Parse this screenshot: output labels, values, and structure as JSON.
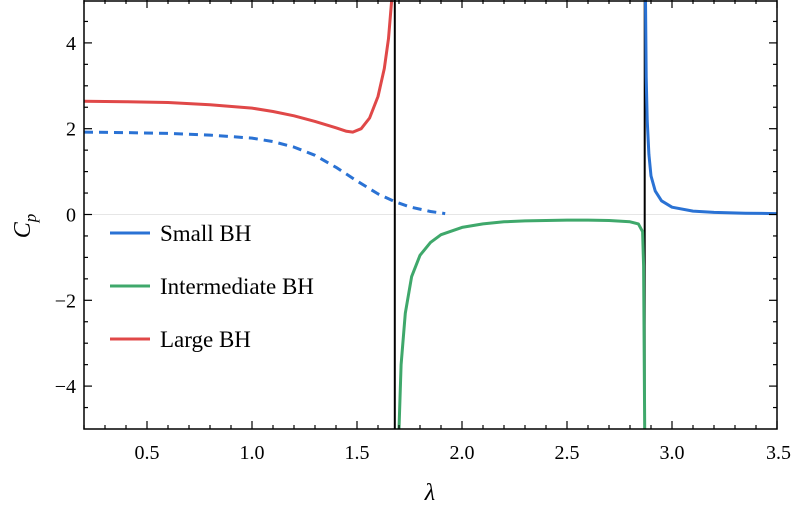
{
  "chart_data": {
    "type": "line",
    "xlabel": "λ",
    "ylabel": "C",
    "ylabel_sub": "p",
    "xlim": [
      0.2,
      3.5
    ],
    "ylim": [
      -5,
      5
    ],
    "x_ticks": [
      0.5,
      1.0,
      1.5,
      2.0,
      2.5,
      3.0,
      3.5
    ],
    "x_tick_labels": [
      "0.5",
      "1.0",
      "1.5",
      "2.0",
      "2.5",
      "3.0",
      "3.5"
    ],
    "y_ticks": [
      -4,
      -2,
      0,
      2,
      4
    ],
    "y_tick_labels": [
      "−4",
      "−2",
      "0",
      "2",
      "4"
    ],
    "grid": false,
    "legend_position": "left",
    "vertical_lines": [
      1.68,
      2.87
    ],
    "zero_line": 0,
    "series": [
      {
        "name": "Small BH",
        "color": "#2a72d4",
        "style": "solid",
        "points": [
          [
            2.874,
            5.0
          ],
          [
            2.877,
            3.2
          ],
          [
            2.882,
            2.2
          ],
          [
            2.89,
            1.4
          ],
          [
            2.9,
            0.9
          ],
          [
            2.92,
            0.55
          ],
          [
            2.95,
            0.32
          ],
          [
            3.0,
            0.17
          ],
          [
            3.1,
            0.08
          ],
          [
            3.2,
            0.05
          ],
          [
            3.35,
            0.03
          ],
          [
            3.5,
            0.02
          ]
        ]
      },
      {
        "name": "Small BH (dashed branch)",
        "legend": false,
        "color": "#2a72d4",
        "style": "dashed",
        "points": [
          [
            0.2,
            1.92
          ],
          [
            0.4,
            1.91
          ],
          [
            0.6,
            1.89
          ],
          [
            0.8,
            1.85
          ],
          [
            1.0,
            1.78
          ],
          [
            1.1,
            1.7
          ],
          [
            1.2,
            1.57
          ],
          [
            1.3,
            1.38
          ],
          [
            1.4,
            1.1
          ],
          [
            1.5,
            0.78
          ],
          [
            1.6,
            0.48
          ],
          [
            1.68,
            0.3
          ],
          [
            1.75,
            0.18
          ],
          [
            1.85,
            0.07
          ],
          [
            1.92,
            0.02
          ]
        ]
      },
      {
        "name": "Intermediate BH",
        "color": "#3fa86b",
        "style": "solid",
        "points": [
          [
            1.7,
            -5.0
          ],
          [
            1.71,
            -3.5
          ],
          [
            1.73,
            -2.3
          ],
          [
            1.76,
            -1.45
          ],
          [
            1.8,
            -0.95
          ],
          [
            1.85,
            -0.65
          ],
          [
            1.9,
            -0.47
          ],
          [
            2.0,
            -0.3
          ],
          [
            2.1,
            -0.22
          ],
          [
            2.2,
            -0.17
          ],
          [
            2.3,
            -0.15
          ],
          [
            2.4,
            -0.14
          ],
          [
            2.5,
            -0.13
          ],
          [
            2.6,
            -0.13
          ],
          [
            2.7,
            -0.14
          ],
          [
            2.8,
            -0.17
          ],
          [
            2.84,
            -0.22
          ],
          [
            2.86,
            -0.4
          ],
          [
            2.865,
            -1.2
          ],
          [
            2.87,
            -5.0
          ]
        ]
      },
      {
        "name": "Large BH",
        "color": "#e04848",
        "style": "solid",
        "points": [
          [
            0.2,
            2.64
          ],
          [
            0.4,
            2.63
          ],
          [
            0.6,
            2.61
          ],
          [
            0.8,
            2.56
          ],
          [
            1.0,
            2.48
          ],
          [
            1.1,
            2.4
          ],
          [
            1.2,
            2.3
          ],
          [
            1.3,
            2.17
          ],
          [
            1.4,
            2.02
          ],
          [
            1.45,
            1.94
          ],
          [
            1.48,
            1.92
          ],
          [
            1.52,
            2.0
          ],
          [
            1.56,
            2.25
          ],
          [
            1.6,
            2.75
          ],
          [
            1.63,
            3.4
          ],
          [
            1.65,
            4.1
          ],
          [
            1.665,
            5.0
          ]
        ]
      }
    ]
  }
}
